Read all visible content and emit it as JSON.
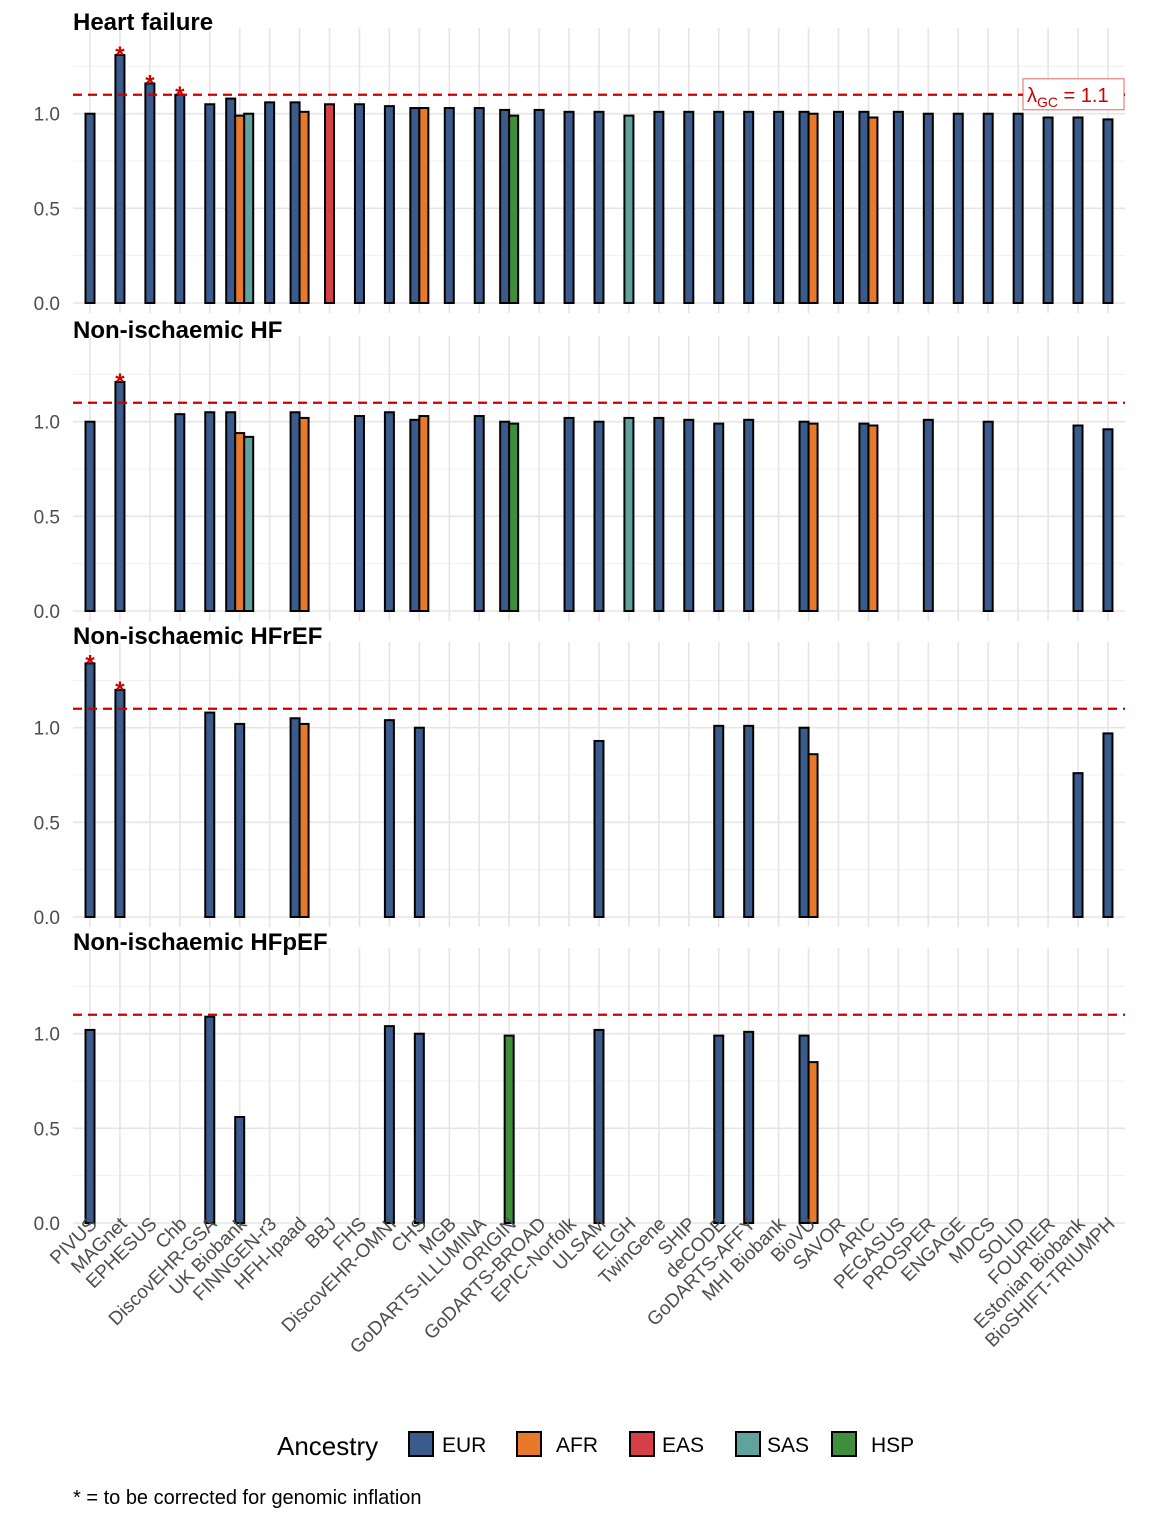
{
  "chart_data": {
    "type": "bar",
    "categories": [
      "PIVUS",
      "MAGnet",
      "EPHESUS",
      "Chb",
      "DiscovEHR-GSA",
      "UK Biobank",
      "FINNGEN-r3",
      "HFH-Ipaad",
      "BBJ",
      "FHS",
      "DiscovEHR-OMNI",
      "CHS",
      "MGB",
      "GoDARTS-ILLUMINA",
      "ORIGIN",
      "GoDARTS-BROAD",
      "EPIC-Norfolk",
      "ULSAM",
      "ELGH",
      "TwinGene",
      "SHIP",
      "deCODE",
      "GoDARTS-AFFY",
      "MHI Biobank",
      "BioVU",
      "SAVOR",
      "ARIC",
      "PEGASUS",
      "PROSPER",
      "ENGAGE",
      "MDCS",
      "SOLID",
      "FOURIER",
      "Estonian Biobank",
      "BioSHIFT-TRIUMPH"
    ],
    "ancestry_colors": {
      "EUR": "#3B5B8C",
      "AFR": "#E8782A",
      "EAS": "#D63E48",
      "SAS": "#5FA39C",
      "HSP": "#3F8E3E"
    },
    "legend": {
      "title": "Ancestry",
      "entries": [
        "EUR",
        "AFR",
        "EAS",
        "SAS",
        "HSP"
      ],
      "placement": "bottom"
    },
    "reference_line": {
      "value": 1.1,
      "label_prefix": "λ",
      "label_sub": "GC",
      "label_suffix": " = 1.1"
    },
    "ylim": [
      0,
      1.4
    ],
    "yticks": [
      "0.0",
      "0.5",
      "1.0"
    ],
    "ytick_values": [
      0,
      0.5,
      1.0
    ],
    "footnote": "* = to be corrected for genomic inflation",
    "star_symbol": "*",
    "panels": [
      {
        "title": "Heart failure",
        "bars": [
          {
            "cohort": "PIVUS",
            "ancestry": "EUR",
            "value": 1.0
          },
          {
            "cohort": "MAGnet",
            "ancestry": "EUR",
            "value": 1.31,
            "flag": true
          },
          {
            "cohort": "EPHESUS",
            "ancestry": "EUR",
            "value": 1.16,
            "flag": true
          },
          {
            "cohort": "Chb",
            "ancestry": "EUR",
            "value": 1.1,
            "flag": true
          },
          {
            "cohort": "DiscovEHR-GSA",
            "ancestry": "EUR",
            "value": 1.05
          },
          {
            "cohort": "UK Biobank",
            "ancestry": "EUR",
            "value": 1.08
          },
          {
            "cohort": "UK Biobank",
            "ancestry": "AFR",
            "value": 0.99
          },
          {
            "cohort": "UK Biobank",
            "ancestry": "SAS",
            "value": 1.0
          },
          {
            "cohort": "FINNGEN-r3",
            "ancestry": "EUR",
            "value": 1.06
          },
          {
            "cohort": "HFH-Ipaad",
            "ancestry": "EUR",
            "value": 1.06
          },
          {
            "cohort": "HFH-Ipaad",
            "ancestry": "AFR",
            "value": 1.01
          },
          {
            "cohort": "BBJ",
            "ancestry": "EAS",
            "value": 1.05
          },
          {
            "cohort": "FHS",
            "ancestry": "EUR",
            "value": 1.05
          },
          {
            "cohort": "DiscovEHR-OMNI",
            "ancestry": "EUR",
            "value": 1.04
          },
          {
            "cohort": "CHS",
            "ancestry": "EUR",
            "value": 1.03
          },
          {
            "cohort": "CHS",
            "ancestry": "AFR",
            "value": 1.03
          },
          {
            "cohort": "MGB",
            "ancestry": "EUR",
            "value": 1.03
          },
          {
            "cohort": "GoDARTS-ILLUMINA",
            "ancestry": "EUR",
            "value": 1.03
          },
          {
            "cohort": "ORIGIN",
            "ancestry": "EUR",
            "value": 1.02
          },
          {
            "cohort": "ORIGIN",
            "ancestry": "HSP",
            "value": 0.99
          },
          {
            "cohort": "GoDARTS-BROAD",
            "ancestry": "EUR",
            "value": 1.02
          },
          {
            "cohort": "EPIC-Norfolk",
            "ancestry": "EUR",
            "value": 1.01
          },
          {
            "cohort": "ULSAM",
            "ancestry": "EUR",
            "value": 1.01
          },
          {
            "cohort": "ELGH",
            "ancestry": "SAS",
            "value": 0.99
          },
          {
            "cohort": "TwinGene",
            "ancestry": "EUR",
            "value": 1.01
          },
          {
            "cohort": "SHIP",
            "ancestry": "EUR",
            "value": 1.01
          },
          {
            "cohort": "deCODE",
            "ancestry": "EUR",
            "value": 1.01
          },
          {
            "cohort": "GoDARTS-AFFY",
            "ancestry": "EUR",
            "value": 1.01
          },
          {
            "cohort": "MHI Biobank",
            "ancestry": "EUR",
            "value": 1.01
          },
          {
            "cohort": "BioVU",
            "ancestry": "EUR",
            "value": 1.01
          },
          {
            "cohort": "BioVU",
            "ancestry": "AFR",
            "value": 1.0
          },
          {
            "cohort": "SAVOR",
            "ancestry": "EUR",
            "value": 1.01
          },
          {
            "cohort": "ARIC",
            "ancestry": "EUR",
            "value": 1.01
          },
          {
            "cohort": "ARIC",
            "ancestry": "AFR",
            "value": 0.98
          },
          {
            "cohort": "PEGASUS",
            "ancestry": "EUR",
            "value": 1.01
          },
          {
            "cohort": "PROSPER",
            "ancestry": "EUR",
            "value": 1.0
          },
          {
            "cohort": "ENGAGE",
            "ancestry": "EUR",
            "value": 1.0
          },
          {
            "cohort": "MDCS",
            "ancestry": "EUR",
            "value": 1.0
          },
          {
            "cohort": "SOLID",
            "ancestry": "EUR",
            "value": 1.0
          },
          {
            "cohort": "FOURIER",
            "ancestry": "EUR",
            "value": 0.98
          },
          {
            "cohort": "Estonian Biobank",
            "ancestry": "EUR",
            "value": 0.98
          },
          {
            "cohort": "BioSHIFT-TRIUMPH",
            "ancestry": "EUR",
            "value": 0.97
          }
        ]
      },
      {
        "title": "Non-ischaemic HF",
        "bars": [
          {
            "cohort": "PIVUS",
            "ancestry": "EUR",
            "value": 1.0
          },
          {
            "cohort": "MAGnet",
            "ancestry": "EUR",
            "value": 1.21,
            "flag": true
          },
          {
            "cohort": "Chb",
            "ancestry": "EUR",
            "value": 1.04
          },
          {
            "cohort": "DiscovEHR-GSA",
            "ancestry": "EUR",
            "value": 1.05
          },
          {
            "cohort": "UK Biobank",
            "ancestry": "EUR",
            "value": 1.05
          },
          {
            "cohort": "UK Biobank",
            "ancestry": "AFR",
            "value": 0.94
          },
          {
            "cohort": "UK Biobank",
            "ancestry": "SAS",
            "value": 0.92
          },
          {
            "cohort": "HFH-Ipaad",
            "ancestry": "EUR",
            "value": 1.05
          },
          {
            "cohort": "HFH-Ipaad",
            "ancestry": "AFR",
            "value": 1.02
          },
          {
            "cohort": "FHS",
            "ancestry": "EUR",
            "value": 1.03
          },
          {
            "cohort": "DiscovEHR-OMNI",
            "ancestry": "EUR",
            "value": 1.05
          },
          {
            "cohort": "CHS",
            "ancestry": "EUR",
            "value": 1.01
          },
          {
            "cohort": "CHS",
            "ancestry": "AFR",
            "value": 1.03
          },
          {
            "cohort": "GoDARTS-ILLUMINA",
            "ancestry": "EUR",
            "value": 1.03
          },
          {
            "cohort": "ORIGIN",
            "ancestry": "EUR",
            "value": 1.0
          },
          {
            "cohort": "ORIGIN",
            "ancestry": "HSP",
            "value": 0.99
          },
          {
            "cohort": "EPIC-Norfolk",
            "ancestry": "EUR",
            "value": 1.02
          },
          {
            "cohort": "ULSAM",
            "ancestry": "EUR",
            "value": 1.0
          },
          {
            "cohort": "ELGH",
            "ancestry": "SAS",
            "value": 1.02
          },
          {
            "cohort": "TwinGene",
            "ancestry": "EUR",
            "value": 1.02
          },
          {
            "cohort": "SHIP",
            "ancestry": "EUR",
            "value": 1.01
          },
          {
            "cohort": "deCODE",
            "ancestry": "EUR",
            "value": 0.99
          },
          {
            "cohort": "GoDARTS-AFFY",
            "ancestry": "EUR",
            "value": 1.01
          },
          {
            "cohort": "BioVU",
            "ancestry": "EUR",
            "value": 1.0
          },
          {
            "cohort": "BioVU",
            "ancestry": "AFR",
            "value": 0.99
          },
          {
            "cohort": "ARIC",
            "ancestry": "EUR",
            "value": 0.99
          },
          {
            "cohort": "ARIC",
            "ancestry": "AFR",
            "value": 0.98
          },
          {
            "cohort": "PROSPER",
            "ancestry": "EUR",
            "value": 1.01
          },
          {
            "cohort": "MDCS",
            "ancestry": "EUR",
            "value": 1.0
          },
          {
            "cohort": "Estonian Biobank",
            "ancestry": "EUR",
            "value": 0.98
          },
          {
            "cohort": "BioSHIFT-TRIUMPH",
            "ancestry": "EUR",
            "value": 0.96
          }
        ]
      },
      {
        "title": "Non-ischaemic HFrEF",
        "bars": [
          {
            "cohort": "PIVUS",
            "ancestry": "EUR",
            "value": 1.34,
            "flag": true
          },
          {
            "cohort": "MAGnet",
            "ancestry": "EUR",
            "value": 1.2,
            "flag": true
          },
          {
            "cohort": "DiscovEHR-GSA",
            "ancestry": "EUR",
            "value": 1.08
          },
          {
            "cohort": "UK Biobank",
            "ancestry": "EUR",
            "value": 1.02
          },
          {
            "cohort": "HFH-Ipaad",
            "ancestry": "EUR",
            "value": 1.05
          },
          {
            "cohort": "HFH-Ipaad",
            "ancestry": "AFR",
            "value": 1.02
          },
          {
            "cohort": "DiscovEHR-OMNI",
            "ancestry": "EUR",
            "value": 1.04
          },
          {
            "cohort": "CHS",
            "ancestry": "EUR",
            "value": 1.0
          },
          {
            "cohort": "ULSAM",
            "ancestry": "EUR",
            "value": 0.93
          },
          {
            "cohort": "deCODE",
            "ancestry": "EUR",
            "value": 1.01
          },
          {
            "cohort": "GoDARTS-AFFY",
            "ancestry": "EUR",
            "value": 1.01
          },
          {
            "cohort": "BioVU",
            "ancestry": "EUR",
            "value": 1.0
          },
          {
            "cohort": "BioVU",
            "ancestry": "AFR",
            "value": 0.86
          },
          {
            "cohort": "Estonian Biobank",
            "ancestry": "EUR",
            "value": 0.76
          },
          {
            "cohort": "BioSHIFT-TRIUMPH",
            "ancestry": "EUR",
            "value": 0.97
          }
        ]
      },
      {
        "title": "Non-ischaemic HFpEF",
        "bars": [
          {
            "cohort": "PIVUS",
            "ancestry": "EUR",
            "value": 1.02
          },
          {
            "cohort": "DiscovEHR-GSA",
            "ancestry": "EUR",
            "value": 1.09
          },
          {
            "cohort": "UK Biobank",
            "ancestry": "EUR",
            "value": 0.56
          },
          {
            "cohort": "DiscovEHR-OMNI",
            "ancestry": "EUR",
            "value": 1.04
          },
          {
            "cohort": "CHS",
            "ancestry": "EUR",
            "value": 1.0
          },
          {
            "cohort": "ORIGIN",
            "ancestry": "HSP",
            "value": 0.99
          },
          {
            "cohort": "ULSAM",
            "ancestry": "EUR",
            "value": 1.02
          },
          {
            "cohort": "deCODE",
            "ancestry": "EUR",
            "value": 0.99
          },
          {
            "cohort": "GoDARTS-AFFY",
            "ancestry": "EUR",
            "value": 1.01
          },
          {
            "cohort": "BioVU",
            "ancestry": "EUR",
            "value": 0.99
          },
          {
            "cohort": "BioVU",
            "ancestry": "AFR",
            "value": 0.85
          }
        ]
      }
    ]
  }
}
